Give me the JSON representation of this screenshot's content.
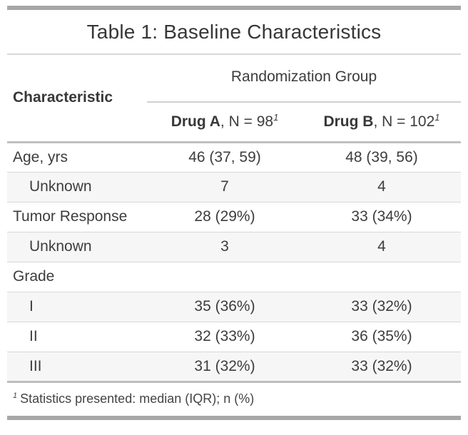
{
  "table": {
    "title": "Table 1: Baseline Characteristics",
    "header": {
      "stub_label": "Characteristic",
      "spanner_label": "Randomization Group",
      "columns": [
        {
          "name": "Drug A",
          "rest": ", N = 98",
          "footnote_mark": "1"
        },
        {
          "name": "Drug B",
          "rest": ", N = 102",
          "footnote_mark": "1"
        }
      ]
    },
    "rows": [
      {
        "label": "Age, yrs",
        "drug_a": "46 (37, 59)",
        "drug_b": "48 (39, 56)"
      },
      {
        "label": "Unknown",
        "drug_a": "7",
        "drug_b": "4"
      },
      {
        "label": "Tumor Response",
        "drug_a": "28 (29%)",
        "drug_b": "33 (34%)"
      },
      {
        "label": "Unknown",
        "drug_a": "3",
        "drug_b": "4"
      },
      {
        "label": "Grade",
        "drug_a": "",
        "drug_b": ""
      },
      {
        "label": "I",
        "drug_a": "35 (36%)",
        "drug_b": "33 (32%)"
      },
      {
        "label": "II",
        "drug_a": "32 (33%)",
        "drug_b": "36 (35%)"
      },
      {
        "label": "III",
        "drug_a": "31 (32%)",
        "drug_b": "33 (32%)"
      }
    ],
    "footnote": {
      "mark": "1",
      "text": "Statistics presented: median (IQR); n (%)"
    }
  },
  "colors": {
    "accent_bar": "#a7a7a7",
    "header_rule": "#c0c0c0",
    "row_rule": "#d8d8d8",
    "stripe_background": "#f6f6f6",
    "text": "#3d3d3d"
  }
}
